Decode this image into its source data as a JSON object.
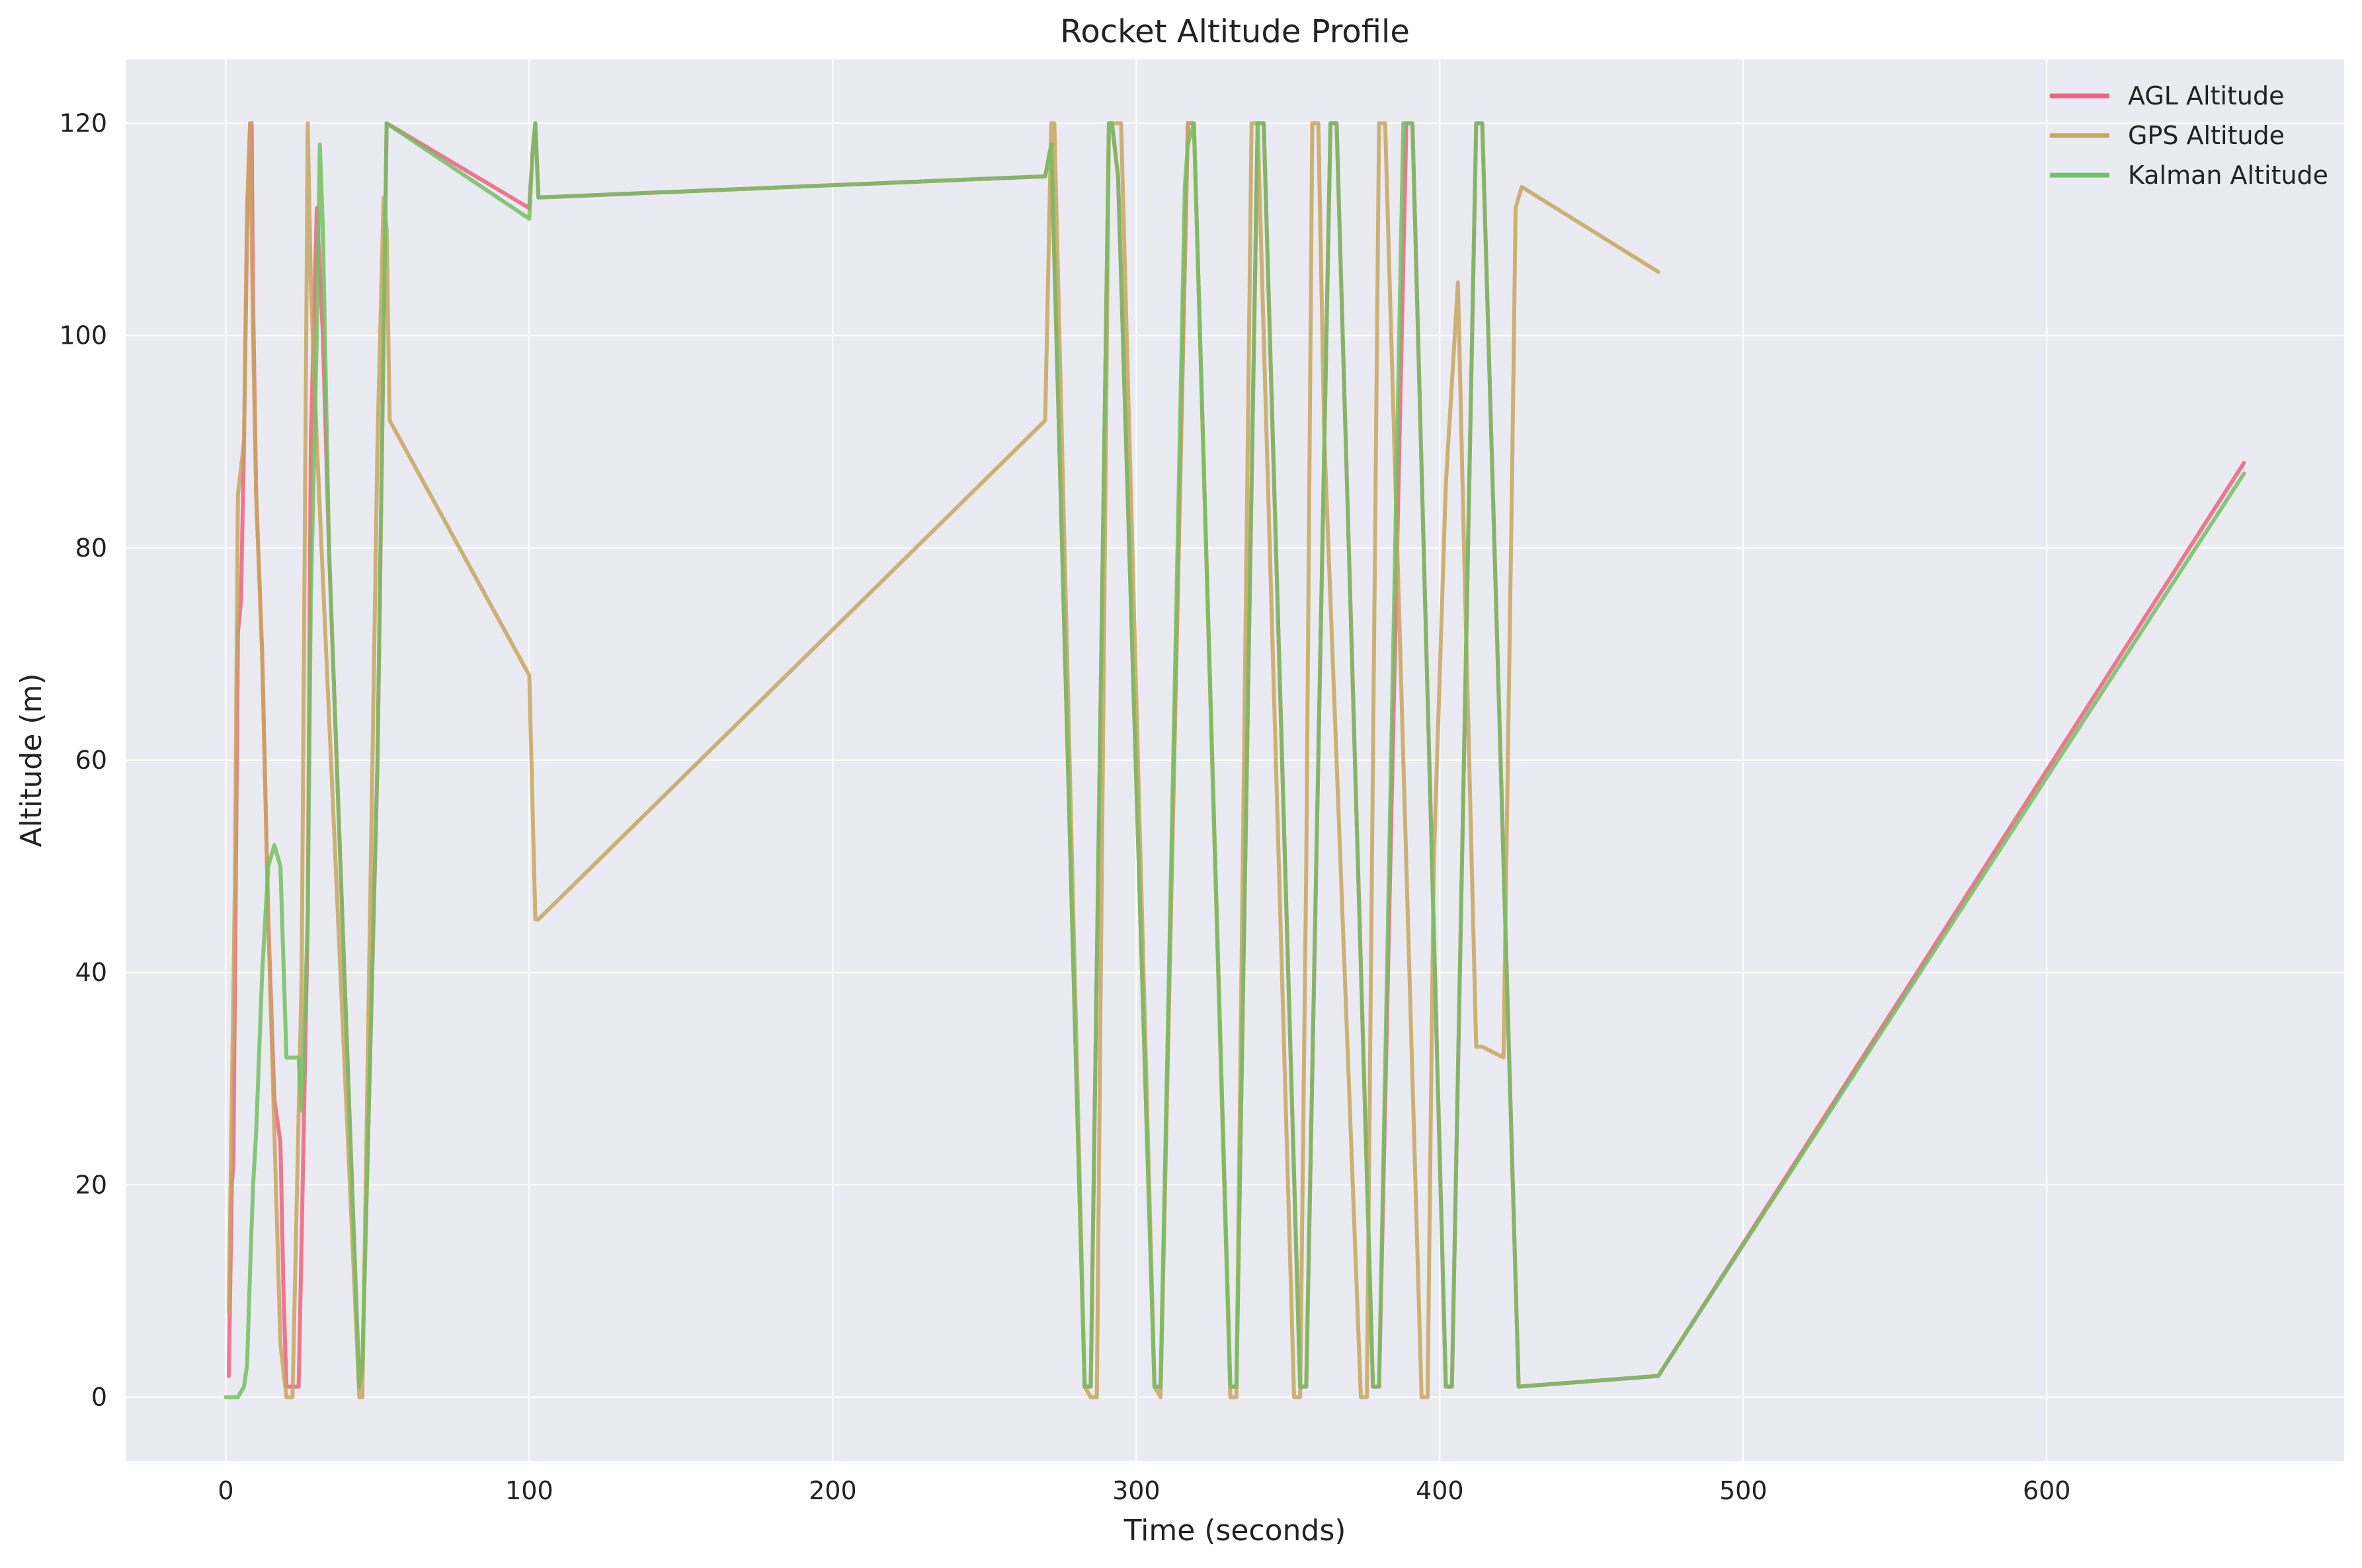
{
  "chart_data": {
    "type": "line",
    "title": "Rocket Altitude Profile",
    "xlabel": "Time (seconds)",
    "ylabel": "Altitude (m)",
    "xlim": [
      -33,
      698
    ],
    "ylim": [
      -6,
      126
    ],
    "xticks": [
      0,
      100,
      200,
      300,
      400,
      500,
      600
    ],
    "yticks": [
      0,
      20,
      40,
      60,
      80,
      100,
      120
    ],
    "grid": true,
    "legend_position": "top-right",
    "colors": {
      "plot_bg": "#eaeaf2",
      "grid": "#ffffff"
    },
    "series": [
      {
        "name": "AGL Altitude",
        "color": "#f0627e",
        "x": [
          1,
          2,
          2.5,
          3,
          4,
          5,
          6,
          7,
          8,
          8.5,
          9,
          10,
          12,
          14,
          16,
          18,
          19,
          20,
          22,
          24,
          25,
          27,
          28,
          30,
          32,
          34,
          44,
          45,
          50,
          52,
          53,
          100,
          101,
          102,
          103,
          270,
          272,
          283,
          285,
          291,
          292,
          294,
          306,
          308,
          317,
          319,
          331,
          333,
          340,
          342,
          354,
          356,
          364,
          366,
          378,
          380,
          389,
          391,
          402,
          404,
          412,
          414,
          426,
          472,
          665
        ],
        "y": [
          2,
          20,
          22,
          38,
          72,
          75,
          90,
          110,
          120,
          120,
          103,
          85,
          70,
          45,
          28,
          24,
          10,
          1,
          1,
          1,
          15,
          45,
          90,
          112,
          100,
          80,
          1,
          3,
          60,
          100,
          120,
          112,
          117,
          120,
          113,
          115,
          118,
          1,
          1,
          120,
          120,
          115,
          1,
          1,
          120,
          120,
          1,
          1,
          120,
          120,
          1,
          1,
          120,
          120,
          1,
          1,
          120,
          120,
          1,
          1,
          120,
          120,
          1,
          2,
          88
        ]
      },
      {
        "name": "GPS Altitude",
        "color": "#c8a65e",
        "x": [
          1,
          3,
          4,
          6,
          7,
          8,
          9,
          10,
          12,
          14,
          16,
          18,
          20,
          22,
          25,
          27,
          28,
          30,
          44,
          45,
          50,
          52,
          53,
          54,
          100,
          102,
          103,
          270,
          272,
          273,
          283,
          285,
          287,
          291,
          292,
          295,
          306,
          308,
          317,
          319,
          331,
          333,
          338,
          340,
          352,
          354,
          356,
          358,
          360,
          362,
          374,
          376,
          380,
          382,
          394,
          396,
          398,
          402,
          406,
          408,
          412,
          414,
          421,
          424,
          425,
          427,
          472
        ],
        "y": [
          8,
          48,
          85,
          90,
          112,
          120,
          100,
          85,
          70,
          45,
          25,
          5,
          0,
          0,
          40,
          120,
          105,
          90,
          0,
          0,
          90,
          113,
          110,
          92,
          68,
          45,
          45,
          92,
          120,
          120,
          1,
          0,
          0,
          120,
          120,
          120,
          1,
          0,
          120,
          120,
          0,
          0,
          120,
          120,
          0,
          0,
          50,
          120,
          120,
          90,
          0,
          0,
          120,
          120,
          0,
          0,
          50,
          86,
          105,
          80,
          33,
          33,
          32,
          90,
          112,
          114,
          106
        ]
      },
      {
        "name": "Kalman Altitude",
        "color": "#72c160",
        "x": [
          0,
          2,
          4,
          6,
          7,
          8,
          9,
          10,
          12,
          14,
          15,
          16,
          17,
          18,
          20,
          22,
          24,
          25,
          27,
          28,
          30,
          31,
          32,
          34,
          44,
          45,
          50,
          52,
          53,
          100,
          101,
          102,
          103,
          270,
          272,
          283,
          285,
          291,
          292,
          294,
          306,
          308,
          316,
          317,
          319,
          331,
          333,
          340,
          342,
          354,
          356,
          364,
          366,
          378,
          380,
          388,
          389,
          391,
          402,
          404,
          412,
          414,
          426,
          472,
          665
        ],
        "y": [
          0,
          0,
          0,
          1,
          3,
          12,
          20,
          25,
          40,
          50,
          51,
          52,
          51,
          50,
          32,
          32,
          32,
          27,
          45,
          75,
          100,
          118,
          110,
          80,
          1,
          3,
          60,
          100,
          120,
          111,
          117,
          120,
          113,
          115,
          118,
          1,
          1,
          120,
          120,
          115,
          1,
          1,
          114,
          118,
          120,
          1,
          1,
          120,
          120,
          1,
          1,
          120,
          120,
          1,
          1,
          120,
          120,
          120,
          1,
          1,
          120,
          120,
          1,
          2,
          87
        ]
      }
    ]
  }
}
